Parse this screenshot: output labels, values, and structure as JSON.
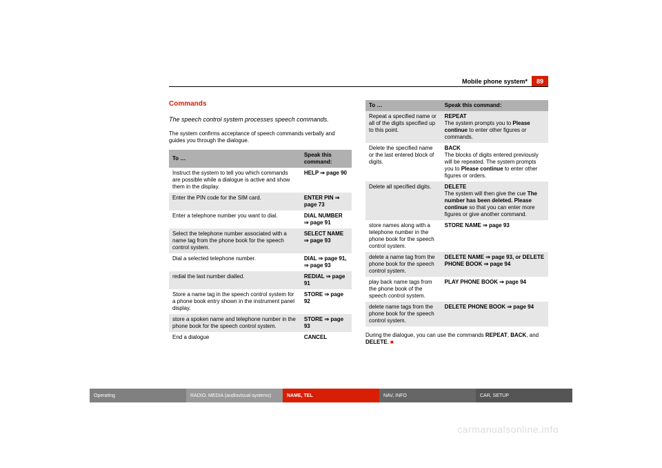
{
  "header": {
    "title": "Mobile phone system*",
    "page": "89"
  },
  "left": {
    "title": "Commands",
    "subtitle": "The speech control system processes speech commands.",
    "intro": "The system confirms acceptance of speech commands verbally and guides you through the dialogue.",
    "th1": "To …",
    "th2": "Speak this command:",
    "rows": [
      {
        "c1": "Instruct the system to tell you which commands are possible while a dialogue is active and show them in the display.",
        "c2": "HELP ⇒ page 90"
      },
      {
        "c1": "Enter the PIN code for the SIM card.",
        "c2": "ENTER PIN ⇒ page 73"
      },
      {
        "c1": "Enter a telephone number you want to dial.",
        "c2": "DIAL NUMBER ⇒ page 91"
      },
      {
        "c1": "Select the telephone number associated with a name tag from the phone book for the speech control system.",
        "c2": "SELECT NAME ⇒ page 93"
      },
      {
        "c1": "Dial a selected telephone number.",
        "c2": "DIAL ⇒ page 91, ⇒ page 93"
      },
      {
        "c1": "redial the last number dialled.",
        "c2": "REDIAL ⇒ page 91"
      },
      {
        "c1": "Store a name tag in the speech control system for a phone book entry shown in the instrument panel display.",
        "c2": "STORE ⇒ page 92"
      },
      {
        "c1": "store a spoken name and telephone number in the phone book for the speech control system.",
        "c2": "STORE ⇒ page 93"
      },
      {
        "c1": "End a dialogue",
        "c2": "CANCEL"
      }
    ]
  },
  "right": {
    "th1": "To …",
    "th2": "Speak this command:",
    "r1c1": "Repeat a specified name or all of the digits specified up to this point.",
    "r2c1": "Delete the specified name or the last entered block of digits.",
    "r3c1": "Delete all specified digits.",
    "r4c1": "store names along with a telephone number in the phone book for the speech control system.",
    "r4c2": "STORE NAME ⇒ page 93",
    "r5c1": "delete a name tag from the phone book for the speech control system.",
    "r5c2": "DELETE NAME ⇒ page 93, or DELETE PHONE BOOK ⇒ page 94",
    "r6c1": "play back name tags from the phone book of the speech control system.",
    "r6c2": "PLAY PHONE BOOK ⇒ page 94",
    "r7c1": "delete name tags from the phone book for the speech control system.",
    "r7c2": "DELETE PHONE BOOK ⇒ page 94"
  },
  "nav": {
    "op": "Operating",
    "radio": "RADIO, MEDIA (audiovisual systems)",
    "name": "NAME, TEL",
    "nav": "NAV, INFO",
    "car": "CAR, SETUP"
  },
  "watermark": "carmanualsonline.info"
}
